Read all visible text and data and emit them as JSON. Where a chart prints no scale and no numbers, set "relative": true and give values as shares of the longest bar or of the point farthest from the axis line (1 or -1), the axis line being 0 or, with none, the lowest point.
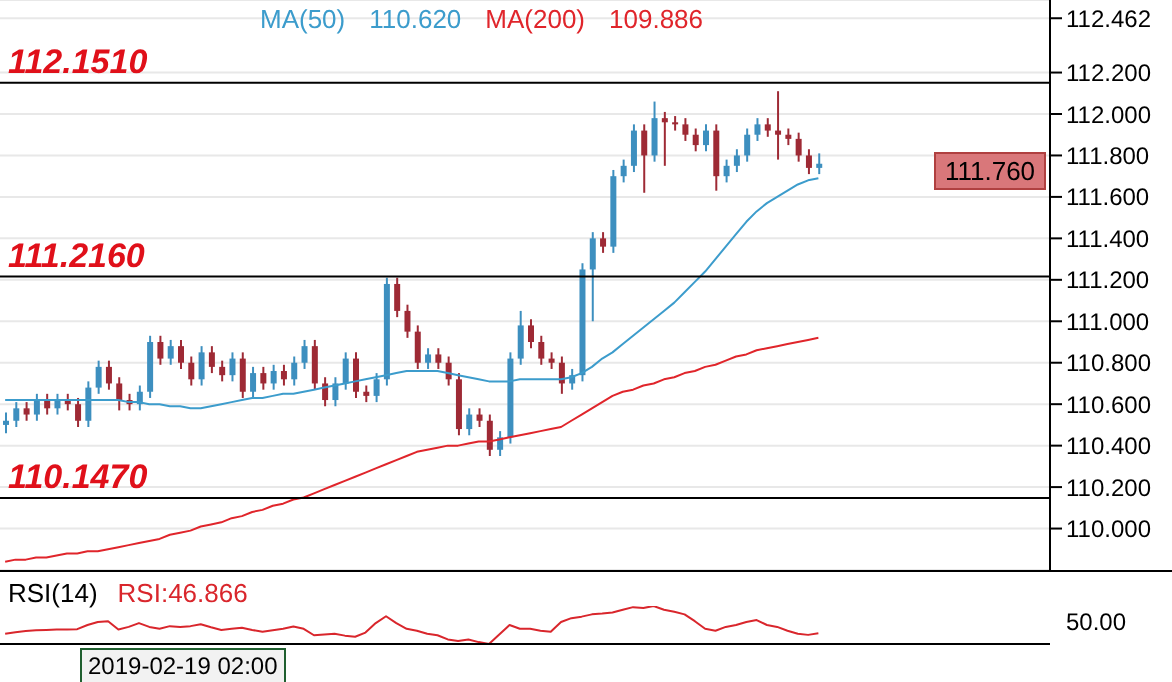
{
  "chart_data": [
    {
      "type": "candlestick",
      "tick_labels": "y",
      "grid": "y",
      "legend": "top",
      "categories": [
        null,
        null,
        null,
        null,
        null,
        null,
        null,
        null,
        null,
        null,
        null,
        null,
        null,
        null,
        null,
        null,
        null,
        null,
        null,
        null,
        null,
        null,
        null,
        null,
        null,
        null,
        null,
        null,
        null,
        null,
        null,
        null,
        null,
        null,
        null,
        null,
        null,
        null,
        null,
        null,
        null,
        null,
        null,
        null,
        null,
        null,
        null,
        null,
        null,
        null,
        null,
        null,
        null,
        null,
        null,
        null,
        null,
        null,
        null,
        null,
        null,
        null,
        null,
        null,
        null,
        null,
        null,
        null,
        null,
        null,
        null,
        null,
        null,
        null,
        null,
        null,
        null,
        null,
        null,
        null
      ],
      "ohlc": [
        [
          110.5,
          110.56,
          110.46,
          110.52
        ],
        [
          110.52,
          110.61,
          110.49,
          110.58
        ],
        [
          110.58,
          110.61,
          110.52,
          110.55
        ],
        [
          110.55,
          110.65,
          110.52,
          110.62
        ],
        [
          110.62,
          110.65,
          110.55,
          110.58
        ],
        [
          110.58,
          110.65,
          110.55,
          110.62
        ],
        [
          110.62,
          110.65,
          110.57,
          110.6
        ],
        [
          110.6,
          110.63,
          110.49,
          110.52
        ],
        [
          110.52,
          110.71,
          110.49,
          110.68
        ],
        [
          110.68,
          110.81,
          110.65,
          110.78
        ],
        [
          110.78,
          110.81,
          110.67,
          110.7
        ],
        [
          110.7,
          110.73,
          110.57,
          110.62
        ],
        [
          110.62,
          110.65,
          110.57,
          110.6
        ],
        [
          110.6,
          110.69,
          110.57,
          110.66
        ],
        [
          110.66,
          110.93,
          110.63,
          110.9
        ],
        [
          110.9,
          110.93,
          110.79,
          110.82
        ],
        [
          110.82,
          110.91,
          110.79,
          110.88
        ],
        [
          110.88,
          110.91,
          110.77,
          110.8
        ],
        [
          110.8,
          110.83,
          110.69,
          110.72
        ],
        [
          110.72,
          110.88,
          110.69,
          110.85
        ],
        [
          110.85,
          110.88,
          110.75,
          110.78
        ],
        [
          110.78,
          110.81,
          110.71,
          110.74
        ],
        [
          110.74,
          110.85,
          110.71,
          110.82
        ],
        [
          110.82,
          110.85,
          110.63,
          110.66
        ],
        [
          110.66,
          110.78,
          110.63,
          110.75
        ],
        [
          110.75,
          110.78,
          110.67,
          110.7
        ],
        [
          110.7,
          110.79,
          110.67,
          110.76
        ],
        [
          110.76,
          110.79,
          110.69,
          110.72
        ],
        [
          110.72,
          110.83,
          110.69,
          110.8
        ],
        [
          110.8,
          110.91,
          110.77,
          110.88
        ],
        [
          110.88,
          110.91,
          110.67,
          110.7
        ],
        [
          110.7,
          110.73,
          110.59,
          110.62
        ],
        [
          110.62,
          110.73,
          110.59,
          110.7
        ],
        [
          110.7,
          110.85,
          110.67,
          110.82
        ],
        [
          110.82,
          110.85,
          110.63,
          110.66
        ],
        [
          110.66,
          110.69,
          110.61,
          110.64
        ],
        [
          110.64,
          110.75,
          110.61,
          110.72
        ],
        [
          110.72,
          111.21,
          110.69,
          111.18
        ],
        [
          111.18,
          111.21,
          111.02,
          111.05
        ],
        [
          111.05,
          111.08,
          110.92,
          110.95
        ],
        [
          110.95,
          110.98,
          110.77,
          110.8
        ],
        [
          110.8,
          110.87,
          110.77,
          110.84
        ],
        [
          110.84,
          110.87,
          110.77,
          110.8
        ],
        [
          110.8,
          110.83,
          110.69,
          110.72
        ],
        [
          110.72,
          110.75,
          110.45,
          110.48
        ],
        [
          110.48,
          110.58,
          110.45,
          110.55
        ],
        [
          110.55,
          110.58,
          110.49,
          110.52
        ],
        [
          110.52,
          110.55,
          110.35,
          110.38
        ],
        [
          110.38,
          110.47,
          110.35,
          110.44
        ],
        [
          110.44,
          110.85,
          110.41,
          110.82
        ],
        [
          110.82,
          111.05,
          110.79,
          110.98
        ],
        [
          110.98,
          111.01,
          110.87,
          110.9
        ],
        [
          110.9,
          110.93,
          110.79,
          110.82
        ],
        [
          110.82,
          110.85,
          110.77,
          110.8
        ],
        [
          110.8,
          110.83,
          110.65,
          110.7
        ],
        [
          110.7,
          110.77,
          110.67,
          110.74
        ],
        [
          110.74,
          111.28,
          110.71,
          111.25
        ],
        [
          111.25,
          111.43,
          111.0,
          111.4
        ],
        [
          111.4,
          111.43,
          111.33,
          111.36
        ],
        [
          111.36,
          111.73,
          111.33,
          111.7
        ],
        [
          111.7,
          111.78,
          111.67,
          111.75
        ],
        [
          111.75,
          111.95,
          111.72,
          111.92
        ],
        [
          111.92,
          111.95,
          111.62,
          111.8
        ],
        [
          111.8,
          112.06,
          111.77,
          111.98
        ],
        [
          111.98,
          112.01,
          111.75,
          111.96
        ],
        [
          111.96,
          111.99,
          111.92,
          111.95
        ],
        [
          111.95,
          111.98,
          111.87,
          111.9
        ],
        [
          111.9,
          111.93,
          111.82,
          111.85
        ],
        [
          111.85,
          111.95,
          111.82,
          111.92
        ],
        [
          111.92,
          111.95,
          111.63,
          111.7
        ],
        [
          111.7,
          111.78,
          111.67,
          111.75
        ],
        [
          111.75,
          111.83,
          111.72,
          111.8
        ],
        [
          111.8,
          111.93,
          111.77,
          111.9
        ],
        [
          111.9,
          111.98,
          111.87,
          111.95
        ],
        [
          111.95,
          111.98,
          111.89,
          111.92
        ],
        [
          111.92,
          112.11,
          111.78,
          111.9
        ],
        [
          111.9,
          111.93,
          111.85,
          111.88
        ],
        [
          111.88,
          111.91,
          111.77,
          111.8
        ],
        [
          111.8,
          111.83,
          111.71,
          111.74
        ],
        [
          111.74,
          111.81,
          111.71,
          111.76
        ]
      ],
      "colors": [
        "#3d8fbf",
        "#3d8fbf",
        "#9e2a35",
        "#3d8fbf",
        "#9e2a35",
        "#3d8fbf",
        "#9e2a35",
        "#9e2a35",
        "#3d8fbf",
        "#3d8fbf",
        "#9e2a35",
        "#9e2a35",
        "#9e2a35",
        "#3d8fbf",
        "#3d8fbf",
        "#9e2a35",
        "#3d8fbf",
        "#9e2a35",
        "#9e2a35",
        "#3d8fbf",
        "#9e2a35",
        "#9e2a35",
        "#3d8fbf",
        "#9e2a35",
        "#3d8fbf",
        "#9e2a35",
        "#3d8fbf",
        "#9e2a35",
        "#3d8fbf",
        "#3d8fbf",
        "#9e2a35",
        "#9e2a35",
        "#3d8fbf",
        "#3d8fbf",
        "#9e2a35",
        "#9e2a35",
        "#3d8fbf",
        "#3d8fbf",
        "#9e2a35",
        "#9e2a35",
        "#9e2a35",
        "#3d8fbf",
        "#9e2a35",
        "#9e2a35",
        "#9e2a35",
        "#3d8fbf",
        "#9e2a35",
        "#9e2a35",
        "#3d8fbf",
        "#3d8fbf",
        "#3d8fbf",
        "#9e2a35",
        "#9e2a35",
        "#9e2a35",
        "#9e2a35",
        "#3d8fbf",
        "#3d8fbf",
        "#3d8fbf",
        "#9e2a35",
        "#3d8fbf",
        "#3d8fbf",
        "#3d8fbf",
        "#9e2a35",
        "#3d8fbf",
        "#9e2a35",
        "#9e2a35",
        "#9e2a35",
        "#9e2a35",
        "#3d8fbf",
        "#9e2a35",
        "#3d8fbf",
        "#3d8fbf",
        "#3d8fbf",
        "#3d8fbf",
        "#9e2a35",
        "#9e2a35",
        "#9e2a35",
        "#9e2a35",
        "#9e2a35",
        "#3d8fbf"
      ],
      "series": [
        {
          "type": "line",
          "name": "MA(50)",
          "color": "#3c9ccc",
          "values": [
            110.62,
            110.62,
            110.62,
            110.62,
            110.62,
            110.62,
            110.62,
            110.62,
            110.62,
            110.62,
            110.62,
            110.62,
            110.61,
            110.61,
            110.6,
            110.6,
            110.59,
            110.59,
            110.58,
            110.58,
            110.59,
            110.6,
            110.61,
            110.62,
            110.63,
            110.63,
            110.64,
            110.65,
            110.65,
            110.66,
            110.67,
            110.68,
            110.69,
            110.7,
            110.71,
            110.72,
            110.73,
            110.74,
            110.75,
            110.76,
            110.76,
            110.76,
            110.76,
            110.75,
            110.74,
            110.73,
            110.72,
            110.71,
            110.71,
            110.71,
            110.72,
            110.72,
            110.72,
            110.72,
            110.72,
            110.73,
            110.75,
            110.78,
            110.82,
            110.85,
            110.89,
            110.93,
            110.97,
            111.01,
            111.05,
            111.09,
            111.14,
            111.19,
            111.24,
            111.3,
            111.36,
            111.42,
            111.48,
            111.53,
            111.57,
            111.6,
            111.63,
            111.66,
            111.68,
            111.69
          ]
        },
        {
          "type": "line",
          "name": "MA(200)",
          "color": "#e0252b",
          "values": [
            109.84,
            109.85,
            109.85,
            109.86,
            109.86,
            109.87,
            109.88,
            109.88,
            109.89,
            109.89,
            109.9,
            109.91,
            109.92,
            109.93,
            109.94,
            109.95,
            109.97,
            109.98,
            109.99,
            110.01,
            110.02,
            110.03,
            110.05,
            110.06,
            110.08,
            110.09,
            110.11,
            110.12,
            110.14,
            110.15,
            110.17,
            110.19,
            110.21,
            110.23,
            110.25,
            110.27,
            110.29,
            110.31,
            110.33,
            110.35,
            110.37,
            110.38,
            110.39,
            110.4,
            110.4,
            110.41,
            110.42,
            110.42,
            110.43,
            110.44,
            110.45,
            110.46,
            110.47,
            110.48,
            110.49,
            110.52,
            110.55,
            110.58,
            110.61,
            110.64,
            110.66,
            110.67,
            110.69,
            110.7,
            110.72,
            110.73,
            110.75,
            110.76,
            110.78,
            110.79,
            110.81,
            110.83,
            110.84,
            110.86,
            110.87,
            110.88,
            110.89,
            110.9,
            110.91,
            110.92
          ]
        }
      ],
      "ylim": [
        109.8,
        112.55
      ],
      "yticks": [
        {
          "value": 110.0,
          "label": "110.000"
        },
        {
          "value": 110.2,
          "label": "110.200"
        },
        {
          "value": 110.4,
          "label": "110.400"
        },
        {
          "value": 110.6,
          "label": "110.600"
        },
        {
          "value": 110.8,
          "label": "110.800"
        },
        {
          "value": 111.0,
          "label": "111.000"
        },
        {
          "value": 111.2,
          "label": "111.200"
        },
        {
          "value": 111.4,
          "label": "111.400"
        },
        {
          "value": 111.6,
          "label": "111.600"
        },
        {
          "value": 111.8,
          "label": "111.800"
        },
        {
          "value": 112.0,
          "label": "112.000"
        },
        {
          "value": 112.2,
          "label": "112.200"
        },
        {
          "value": 112.462,
          "label": "112.462"
        }
      ],
      "ref_lines": [
        {
          "axis": "y",
          "value": 112.151,
          "label": "112.1510",
          "color": "#000000"
        },
        {
          "axis": "y",
          "value": 111.216,
          "label": "111.2160",
          "color": "#000000"
        },
        {
          "axis": "y",
          "value": 110.147,
          "label": "110.1470",
          "color": "#000000"
        }
      ],
      "annotations": [
        "110.620",
        "109.886",
        "111.760"
      ]
    },
    {
      "type": "line",
      "title": "RSI(14)",
      "relative": true,
      "tick_labels": false,
      "categories": [
        null,
        null,
        null,
        null,
        null,
        null,
        null,
        null,
        null,
        null,
        null,
        null,
        null,
        null,
        null,
        null,
        null,
        null,
        null,
        null,
        null,
        null,
        null,
        null,
        null,
        null,
        null,
        null,
        null,
        null,
        null,
        null,
        null,
        null,
        null,
        null,
        null,
        null,
        null,
        null,
        null,
        null,
        null,
        null,
        null,
        null,
        null,
        null,
        null,
        null,
        null,
        null,
        null,
        null,
        null,
        null,
        null,
        null,
        null,
        null,
        null,
        null,
        null,
        null,
        null,
        null,
        null,
        null,
        null,
        null,
        null,
        null,
        null,
        null,
        null,
        null,
        null,
        null,
        null,
        null
      ],
      "series": [
        {
          "color": "#d9262c",
          "values": [
            0.27,
            0.31,
            0.34,
            0.36,
            0.37,
            0.38,
            0.38,
            0.39,
            0.5,
            0.58,
            0.6,
            0.38,
            0.45,
            0.55,
            0.45,
            0.4,
            0.47,
            0.45,
            0.47,
            0.52,
            0.44,
            0.37,
            0.4,
            0.43,
            0.37,
            0.32,
            0.36,
            0.4,
            0.46,
            0.4,
            0.23,
            0.25,
            0.27,
            0.22,
            0.19,
            0.3,
            0.55,
            0.73,
            0.55,
            0.4,
            0.35,
            0.27,
            0.23,
            0.12,
            0.08,
            0.12,
            0.05,
            0,
            0.25,
            0.5,
            0.4,
            0.4,
            0.35,
            0.32,
            0.58,
            0.68,
            0.72,
            0.78,
            0.8,
            0.83,
            0.9,
            0.97,
            0.95,
            1,
            0.9,
            0.85,
            0.78,
            0.6,
            0.4,
            0.35,
            0.45,
            0.5,
            0.58,
            0.63,
            0.5,
            0.45,
            0.35,
            0.27,
            0.24,
            0.28
          ]
        }
      ],
      "annotations": [
        "RSI:46.866",
        "50.00",
        "2019-02-19 02:00"
      ]
    }
  ]
}
